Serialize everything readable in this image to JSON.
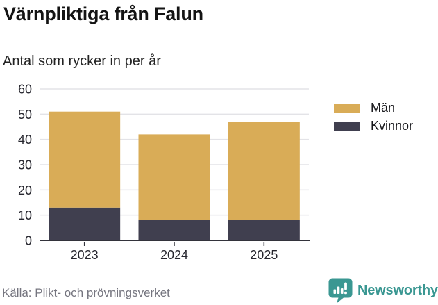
{
  "header": {
    "title": "Värnpliktiga från Falun",
    "subtitle": "Antal som rycker in per år"
  },
  "chart_data": {
    "type": "bar",
    "stacked": true,
    "title": "Värnpliktiga från Falun",
    "subtitle": "Antal som rycker in per år",
    "categories": [
      "2023",
      "2024",
      "2025"
    ],
    "series": [
      {
        "name": "Män",
        "values": [
          38,
          34,
          39
        ],
        "color": "#D9AC57"
      },
      {
        "name": "Kvinnor",
        "values": [
          13,
          8,
          8
        ],
        "color": "#403F4F"
      }
    ],
    "stack_totals": [
      51,
      42,
      47
    ],
    "xlabel": "",
    "ylabel": "",
    "ylim": [
      0,
      60
    ],
    "yticks": [
      0,
      10,
      20,
      30,
      40,
      50,
      60
    ],
    "grid": true,
    "legend_position": "right"
  },
  "footer": {
    "source": "Källa: Plikt- och prövningsverket",
    "brand": "Newsworthy"
  },
  "colors": {
    "men_bar": "#D9AC57",
    "women_bar": "#403F4F",
    "gridline": "#E3E3E7",
    "axis": "#33333B",
    "tick_label": "#26262E",
    "source_text": "#75757F",
    "brand_teal": "#3A9792"
  }
}
